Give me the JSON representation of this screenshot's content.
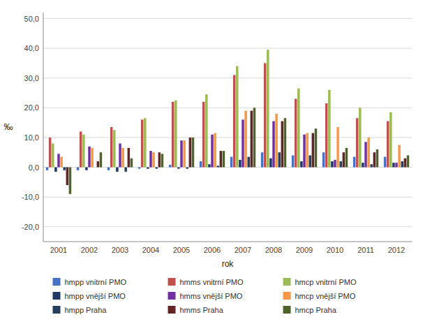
{
  "chart_data": {
    "type": "bar",
    "x_label": "rok",
    "y_label": "‰",
    "categories": [
      "2001",
      "2002",
      "2003",
      "2004",
      "2005",
      "2006",
      "2007",
      "2008",
      "2009",
      "2010",
      "2011",
      "2012"
    ],
    "series": [
      {
        "name": "hmpp vnitrní PMO",
        "color": "#4472C4",
        "values": [
          -1.0,
          -1.0,
          -1.0,
          -0.5,
          0.8,
          2.0,
          3.5,
          5.0,
          4.0,
          5.0,
          3.5,
          3.5
        ]
      },
      {
        "name": "hmms vnitrní PMO",
        "color": "#C0504D",
        "values": [
          10.0,
          12.0,
          13.5,
          16.0,
          22.0,
          22.0,
          31.0,
          35.0,
          23.0,
          21.5,
          16.5,
          15.5
        ]
      },
      {
        "name": "hmcp vnitrní PMO",
        "color": "#9BBB59",
        "values": [
          8.0,
          11.0,
          12.5,
          16.5,
          22.5,
          24.5,
          34.0,
          39.5,
          26.5,
          26.0,
          20.0,
          18.5
        ]
      },
      {
        "name": "hmpp vnější PMO",
        "color": "#1F3864",
        "values": [
          -1.5,
          -1.0,
          -1.5,
          -0.5,
          -0.5,
          1.0,
          2.5,
          3.0,
          2.0,
          2.0,
          1.5,
          1.5
        ]
      },
      {
        "name": "hmms vnější PMO",
        "color": "#7030A0",
        "values": [
          4.5,
          7.0,
          8.0,
          5.5,
          9.0,
          11.0,
          16.0,
          15.5,
          11.0,
          2.5,
          8.5,
          1.5
        ]
      },
      {
        "name": "hmcp vnější PMO",
        "color": "#F79646",
        "values": [
          3.5,
          6.5,
          6.5,
          5.0,
          9.0,
          11.5,
          19.0,
          18.0,
          11.5,
          13.5,
          10.0,
          7.5
        ]
      },
      {
        "name": "hmpp Praha",
        "color": "#243F60",
        "values": [
          -1.0,
          0.0,
          -1.5,
          -0.5,
          -0.5,
          0.5,
          3.5,
          5.0,
          4.0,
          2.0,
          1.0,
          2.0
        ]
      },
      {
        "name": "hmms Praha",
        "color": "#632523",
        "values": [
          -6.0,
          2.0,
          6.5,
          5.0,
          10.0,
          5.5,
          19.0,
          15.5,
          11.5,
          5.0,
          5.0,
          3.0
        ]
      },
      {
        "name": "hmcp Praha",
        "color": "#4F6228",
        "values": [
          -9.0,
          5.0,
          3.0,
          4.5,
          10.0,
          5.5,
          20.0,
          16.5,
          13.0,
          6.5,
          6.0,
          4.0
        ]
      }
    ],
    "ylim": [
      -25,
      52
    ],
    "yticks": [
      {
        "value": -20,
        "label": "-20,0"
      },
      {
        "value": -10,
        "label": "-10,0"
      },
      {
        "value": 0,
        "label": "0,0"
      },
      {
        "value": 10,
        "label": "10,0"
      },
      {
        "value": 20,
        "label": "20,0"
      },
      {
        "value": 30,
        "label": "30,0"
      },
      {
        "value": 40,
        "label": "40,0"
      },
      {
        "value": 50,
        "label": "50,0"
      }
    ],
    "grid": true,
    "legend": "bottom"
  }
}
